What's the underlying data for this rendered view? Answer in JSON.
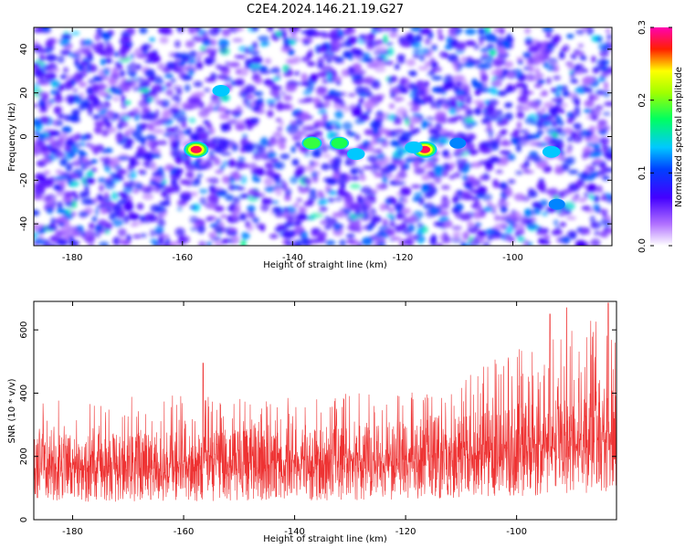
{
  "title": "C2E4.2024.146.21.19.G27",
  "chart_data": [
    {
      "type": "heatmap",
      "xlabel": "Height of straight line (km)",
      "ylabel": "Frequency (Hz)",
      "xlim": [
        -187,
        -82
      ],
      "ylim": [
        -50,
        50
      ],
      "x_ticks": [
        -180,
        -160,
        -140,
        -120,
        -100
      ],
      "y_ticks": [
        -40,
        -20,
        0,
        20,
        40
      ],
      "colorbar": {
        "label": "Normalized spectral amplitude",
        "range": [
          0.0,
          0.3
        ],
        "ticks": [
          0.0,
          0.1,
          0.2,
          0.3
        ],
        "colormap": "white-purple-blue-cyan-green-yellow-red-magenta"
      },
      "hotspots": [
        {
          "x": -157.5,
          "y": -6,
          "value": 0.3
        },
        {
          "x": -116,
          "y": -6,
          "value": 0.3
        },
        {
          "x": -136.5,
          "y": -3,
          "value": 0.2
        },
        {
          "x": -131.5,
          "y": -3,
          "value": 0.18
        },
        {
          "x": -128.5,
          "y": -8,
          "value": 0.15
        },
        {
          "x": -118,
          "y": -5,
          "value": 0.15
        },
        {
          "x": -153,
          "y": 21,
          "value": 0.14
        },
        {
          "x": -93,
          "y": -7,
          "value": 0.15
        },
        {
          "x": -92,
          "y": -31,
          "value": 0.12
        },
        {
          "x": -110,
          "y": -3,
          "value": 0.12
        }
      ]
    },
    {
      "type": "line",
      "xlabel": "Height of straight line (km)",
      "ylabel": "SNR (10 * v/v)",
      "xlim": [
        -187,
        -82
      ],
      "ylim": [
        0,
        690
      ],
      "x_ticks": [
        -180,
        -160,
        -140,
        -120,
        -100
      ],
      "y_ticks": [
        0,
        200,
        400,
        600
      ],
      "series_color": "#ee3333",
      "trend": {
        "x": [
          -187,
          -175,
          -160,
          -145,
          -130,
          -115,
          -100,
          -90,
          -82
        ],
        "baseline": [
          160,
          160,
          165,
          170,
          175,
          190,
          210,
          230,
          250
        ],
        "envelope_max": [
          390,
          380,
          410,
          380,
          400,
          410,
          540,
          600,
          680
        ]
      },
      "notable_peaks": [
        {
          "x": -156.5,
          "y": 495
        },
        {
          "x": -94,
          "y": 650
        },
        {
          "x": -91,
          "y": 670
        },
        {
          "x": -83.5,
          "y": 685
        }
      ]
    }
  ]
}
